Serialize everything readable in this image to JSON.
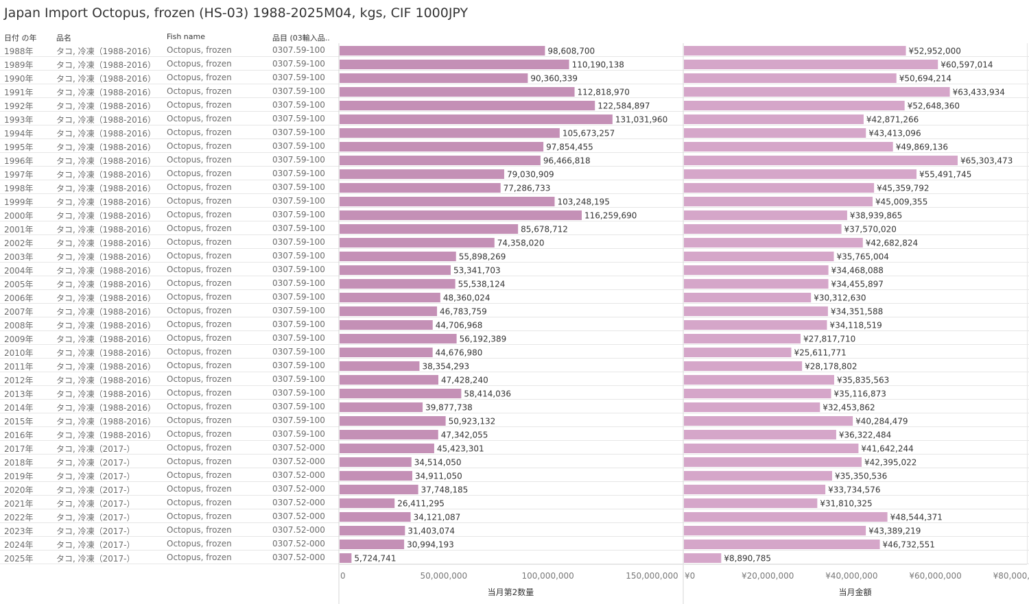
{
  "title": "Japan Import Octopus, frozen (HS-03) 1988-2025M04, kgs, CIF 1000JPY",
  "headers": {
    "year": "日付 の年",
    "name": "品名",
    "fish": "Fish name",
    "code": "品目 (03輸入品.."
  },
  "colors": {
    "qty_bar": "#c490b6",
    "value_bar": "#d5a6c9",
    "grid": "#e6e6e6"
  },
  "chart_data": [
    {
      "type": "bar",
      "orientation": "horizontal",
      "xlabel": "当月第2数量",
      "xlim": [
        0,
        165000000
      ],
      "ticks": [
        0,
        50000000,
        100000000,
        150000000
      ],
      "tick_labels": [
        "0",
        "50,000,000",
        "100,000,000",
        "150,000,000"
      ],
      "categories": [
        "1988年",
        "1989年",
        "1990年",
        "1991年",
        "1992年",
        "1993年",
        "1994年",
        "1995年",
        "1996年",
        "1997年",
        "1998年",
        "1999年",
        "2000年",
        "2001年",
        "2002年",
        "2003年",
        "2004年",
        "2005年",
        "2006年",
        "2007年",
        "2008年",
        "2009年",
        "2010年",
        "2011年",
        "2012年",
        "2013年",
        "2014年",
        "2015年",
        "2016年",
        "2017年",
        "2018年",
        "2019年",
        "2020年",
        "2021年",
        "2022年",
        "2023年",
        "2024年",
        "2025年"
      ],
      "values": [
        98608700,
        110190138,
        90360339,
        112818970,
        122584897,
        131031960,
        105673257,
        97854455,
        96466818,
        79030909,
        77286733,
        103248195,
        116259690,
        85678712,
        74358020,
        55898269,
        53341703,
        55538124,
        48360024,
        46783759,
        44706968,
        56192389,
        44676980,
        38354293,
        47428240,
        58414036,
        39877738,
        50923132,
        47342055,
        45423301,
        34514050,
        34911050,
        37748185,
        26411295,
        34121087,
        31403074,
        30994193,
        5724741
      ],
      "labels": [
        "98,608,700",
        "110,190,138",
        "90,360,339",
        "112,818,970",
        "122,584,897",
        "131,031,960",
        "105,673,257",
        "97,854,455",
        "96,466,818",
        "79,030,909",
        "77,286,733",
        "103,248,195",
        "116,259,690",
        "85,678,712",
        "74,358,020",
        "55,898,269",
        "53,341,703",
        "55,538,124",
        "48,360,024",
        "46,783,759",
        "44,706,968",
        "56,192,389",
        "44,676,980",
        "38,354,293",
        "47,428,240",
        "58,414,036",
        "39,877,738",
        "50,923,132",
        "47,342,055",
        "45,423,301",
        "34,514,050",
        "34,911,050",
        "37,748,185",
        "26,411,295",
        "34,121,087",
        "31,403,074",
        "30,994,193",
        "5,724,741"
      ]
    },
    {
      "type": "bar",
      "orientation": "horizontal",
      "xlabel": "当月金額",
      "xlim": [
        0,
        82000000
      ],
      "ticks": [
        0,
        20000000,
        40000000,
        60000000,
        80000000
      ],
      "tick_labels": [
        "¥0",
        "¥20,000,000",
        "¥40,000,000",
        "¥60,000,000",
        "¥80,000,000"
      ],
      "categories": [
        "1988年",
        "1989年",
        "1990年",
        "1991年",
        "1992年",
        "1993年",
        "1994年",
        "1995年",
        "1996年",
        "1997年",
        "1998年",
        "1999年",
        "2000年",
        "2001年",
        "2002年",
        "2003年",
        "2004年",
        "2005年",
        "2006年",
        "2007年",
        "2008年",
        "2009年",
        "2010年",
        "2011年",
        "2012年",
        "2013年",
        "2014年",
        "2015年",
        "2016年",
        "2017年",
        "2018年",
        "2019年",
        "2020年",
        "2021年",
        "2022年",
        "2023年",
        "2024年",
        "2025年"
      ],
      "values": [
        52952000,
        60597014,
        50694214,
        63433934,
        52648360,
        42871266,
        43413096,
        49869136,
        65303473,
        55491745,
        45359792,
        45009355,
        38939865,
        37570020,
        42682824,
        35765004,
        34468088,
        34455897,
        30312630,
        34351588,
        34118519,
        27817710,
        25611771,
        28178802,
        35835563,
        35116873,
        32453862,
        40284479,
        36322484,
        41642244,
        42395022,
        35350536,
        33734576,
        31810325,
        48544371,
        43389219,
        46732551,
        8890785
      ],
      "labels": [
        "¥52,952,000",
        "¥60,597,014",
        "¥50,694,214",
        "¥63,433,934",
        "¥52,648,360",
        "¥42,871,266",
        "¥43,413,096",
        "¥49,869,136",
        "¥65,303,473",
        "¥55,491,745",
        "¥45,359,792",
        "¥45,009,355",
        "¥38,939,865",
        "¥37,570,020",
        "¥42,682,824",
        "¥35,765,004",
        "¥34,468,088",
        "¥34,455,897",
        "¥30,312,630",
        "¥34,351,588",
        "¥34,118,519",
        "¥27,817,710",
        "¥25,611,771",
        "¥28,178,802",
        "¥35,835,563",
        "¥35,116,873",
        "¥32,453,862",
        "¥40,284,479",
        "¥36,322,484",
        "¥41,642,244",
        "¥42,395,022",
        "¥35,350,536",
        "¥33,734,576",
        "¥31,810,325",
        "¥48,544,371",
        "¥43,389,219",
        "¥46,732,551",
        "¥8,890,785"
      ]
    }
  ],
  "rows": [
    {
      "year": "1988年",
      "name": "タコ, 冷凍（1988-2016）",
      "fish": "Octopus, frozen",
      "code": "0307.59-100"
    },
    {
      "year": "1989年",
      "name": "タコ, 冷凍（1988-2016）",
      "fish": "Octopus, frozen",
      "code": "0307.59-100"
    },
    {
      "year": "1990年",
      "name": "タコ, 冷凍（1988-2016）",
      "fish": "Octopus, frozen",
      "code": "0307.59-100"
    },
    {
      "year": "1991年",
      "name": "タコ, 冷凍（1988-2016）",
      "fish": "Octopus, frozen",
      "code": "0307.59-100"
    },
    {
      "year": "1992年",
      "name": "タコ, 冷凍（1988-2016）",
      "fish": "Octopus, frozen",
      "code": "0307.59-100"
    },
    {
      "year": "1993年",
      "name": "タコ, 冷凍（1988-2016）",
      "fish": "Octopus, frozen",
      "code": "0307.59-100"
    },
    {
      "year": "1994年",
      "name": "タコ, 冷凍（1988-2016）",
      "fish": "Octopus, frozen",
      "code": "0307.59-100"
    },
    {
      "year": "1995年",
      "name": "タコ, 冷凍（1988-2016）",
      "fish": "Octopus, frozen",
      "code": "0307.59-100"
    },
    {
      "year": "1996年",
      "name": "タコ, 冷凍（1988-2016）",
      "fish": "Octopus, frozen",
      "code": "0307.59-100"
    },
    {
      "year": "1997年",
      "name": "タコ, 冷凍（1988-2016）",
      "fish": "Octopus, frozen",
      "code": "0307.59-100"
    },
    {
      "year": "1998年",
      "name": "タコ, 冷凍（1988-2016）",
      "fish": "Octopus, frozen",
      "code": "0307.59-100"
    },
    {
      "year": "1999年",
      "name": "タコ, 冷凍（1988-2016）",
      "fish": "Octopus, frozen",
      "code": "0307.59-100"
    },
    {
      "year": "2000年",
      "name": "タコ, 冷凍（1988-2016）",
      "fish": "Octopus, frozen",
      "code": "0307.59-100"
    },
    {
      "year": "2001年",
      "name": "タコ, 冷凍（1988-2016）",
      "fish": "Octopus, frozen",
      "code": "0307.59-100"
    },
    {
      "year": "2002年",
      "name": "タコ, 冷凍（1988-2016）",
      "fish": "Octopus, frozen",
      "code": "0307.59-100"
    },
    {
      "year": "2003年",
      "name": "タコ, 冷凍（1988-2016）",
      "fish": "Octopus, frozen",
      "code": "0307.59-100"
    },
    {
      "year": "2004年",
      "name": "タコ, 冷凍（1988-2016）",
      "fish": "Octopus, frozen",
      "code": "0307.59-100"
    },
    {
      "year": "2005年",
      "name": "タコ, 冷凍（1988-2016）",
      "fish": "Octopus, frozen",
      "code": "0307.59-100"
    },
    {
      "year": "2006年",
      "name": "タコ, 冷凍（1988-2016）",
      "fish": "Octopus, frozen",
      "code": "0307.59-100"
    },
    {
      "year": "2007年",
      "name": "タコ, 冷凍（1988-2016）",
      "fish": "Octopus, frozen",
      "code": "0307.59-100"
    },
    {
      "year": "2008年",
      "name": "タコ, 冷凍（1988-2016）",
      "fish": "Octopus, frozen",
      "code": "0307.59-100"
    },
    {
      "year": "2009年",
      "name": "タコ, 冷凍（1988-2016）",
      "fish": "Octopus, frozen",
      "code": "0307.59-100"
    },
    {
      "year": "2010年",
      "name": "タコ, 冷凍（1988-2016）",
      "fish": "Octopus, frozen",
      "code": "0307.59-100"
    },
    {
      "year": "2011年",
      "name": "タコ, 冷凍（1988-2016）",
      "fish": "Octopus, frozen",
      "code": "0307.59-100"
    },
    {
      "year": "2012年",
      "name": "タコ, 冷凍（1988-2016）",
      "fish": "Octopus, frozen",
      "code": "0307.59-100"
    },
    {
      "year": "2013年",
      "name": "タコ, 冷凍（1988-2016）",
      "fish": "Octopus, frozen",
      "code": "0307.59-100"
    },
    {
      "year": "2014年",
      "name": "タコ, 冷凍（1988-2016）",
      "fish": "Octopus, frozen",
      "code": "0307.59-100"
    },
    {
      "year": "2015年",
      "name": "タコ, 冷凍（1988-2016）",
      "fish": "Octopus, frozen",
      "code": "0307.59-100"
    },
    {
      "year": "2016年",
      "name": "タコ, 冷凍（1988-2016）",
      "fish": "Octopus, frozen",
      "code": "0307.59-100"
    },
    {
      "year": "2017年",
      "name": "タコ, 冷凍（2017-）",
      "fish": "Octopus, frozen",
      "code": "0307.52-000"
    },
    {
      "year": "2018年",
      "name": "タコ, 冷凍（2017-）",
      "fish": "Octopus, frozen",
      "code": "0307.52-000"
    },
    {
      "year": "2019年",
      "name": "タコ, 冷凍（2017-）",
      "fish": "Octopus, frozen",
      "code": "0307.52-000"
    },
    {
      "year": "2020年",
      "name": "タコ, 冷凍（2017-）",
      "fish": "Octopus, frozen",
      "code": "0307.52-000"
    },
    {
      "year": "2021年",
      "name": "タコ, 冷凍（2017-）",
      "fish": "Octopus, frozen",
      "code": "0307.52-000"
    },
    {
      "year": "2022年",
      "name": "タコ, 冷凍（2017-）",
      "fish": "Octopus, frozen",
      "code": "0307.52-000"
    },
    {
      "year": "2023年",
      "name": "タコ, 冷凍（2017-）",
      "fish": "Octopus, frozen",
      "code": "0307.52-000"
    },
    {
      "year": "2024年",
      "name": "タコ, 冷凍（2017-）",
      "fish": "Octopus, frozen",
      "code": "0307.52-000"
    },
    {
      "year": "2025年",
      "name": "タコ, 冷凍（2017-）",
      "fish": "Octopus, frozen",
      "code": "0307.52-000"
    }
  ]
}
